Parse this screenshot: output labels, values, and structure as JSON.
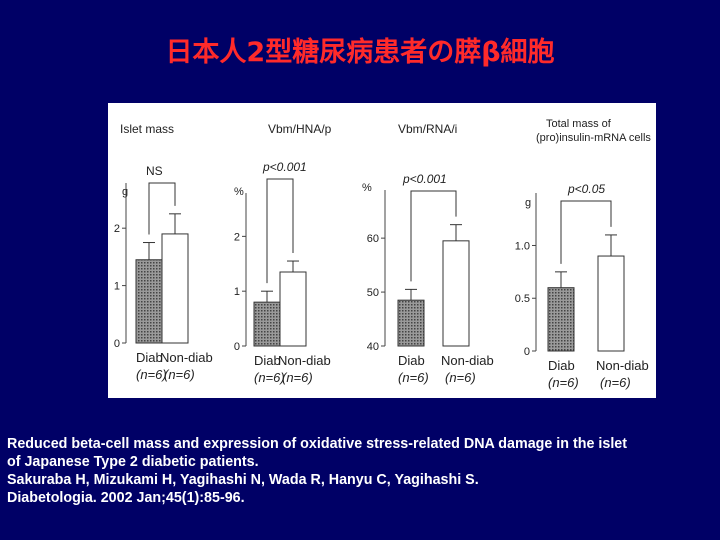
{
  "slide": {
    "title": "日本人2型糖尿病患者の膵β細胞",
    "background": "#000066",
    "title_color": "#ff2a2a"
  },
  "caption": {
    "lines": [
      "Reduced beta-cell mass and expression of oxidative stress-related DNA damage in the islet",
      "of Japanese Type 2 diabetic patients.",
      "Sakuraba H, Mizukami H, Yagihashi N, Wada R, Hanyu C, Yagihashi S.",
      "Diabetologia. 2002 Jan;45(1):85-96."
    ]
  },
  "chart_data": [
    {
      "type": "bar",
      "title": "Islet mass",
      "unit": "g",
      "ylim": [
        0,
        2.7
      ],
      "yticks": [
        "0",
        "1",
        "2"
      ],
      "categories": [
        "Diab",
        "Non-diab"
      ],
      "n_labels": [
        "(n=6)",
        "(n=6)"
      ],
      "values": [
        1.45,
        1.9
      ],
      "errors": [
        0.3,
        0.35
      ],
      "significance": "NS"
    },
    {
      "type": "bar",
      "title": "Vbm/HNA/p",
      "unit": "%",
      "ylim": [
        0,
        2.7
      ],
      "yticks": [
        "0",
        "1",
        "2"
      ],
      "categories": [
        "Diab",
        "Non-diab"
      ],
      "n_labels": [
        "(n=6)",
        "(n=6)"
      ],
      "values": [
        0.8,
        1.35
      ],
      "errors": [
        0.2,
        0.2
      ],
      "significance": "p<0.001"
    },
    {
      "type": "bar",
      "title": "Vbm/RNA/i",
      "unit": "%",
      "ylim": [
        40,
        68
      ],
      "yticks": [
        "40",
        "50",
        "60"
      ],
      "categories": [
        "Diab",
        "Non-diab"
      ],
      "n_labels": [
        "(n=6)",
        "(n=6)"
      ],
      "values": [
        48.5,
        59.5
      ],
      "errors": [
        2.0,
        3.0
      ],
      "significance": "p<0.001"
    },
    {
      "type": "bar",
      "title": "Total mass of (pro)insulin-mRNA cells",
      "unit": "g",
      "ylim": [
        0,
        1.45
      ],
      "yticks": [
        "0",
        "0.5",
        "1.0"
      ],
      "categories": [
        "Diab",
        "Non-diab"
      ],
      "n_labels": [
        "(n=6)",
        "(n=6)"
      ],
      "values": [
        0.6,
        0.9
      ],
      "errors": [
        0.15,
        0.2
      ],
      "significance": "p<0.05"
    }
  ]
}
